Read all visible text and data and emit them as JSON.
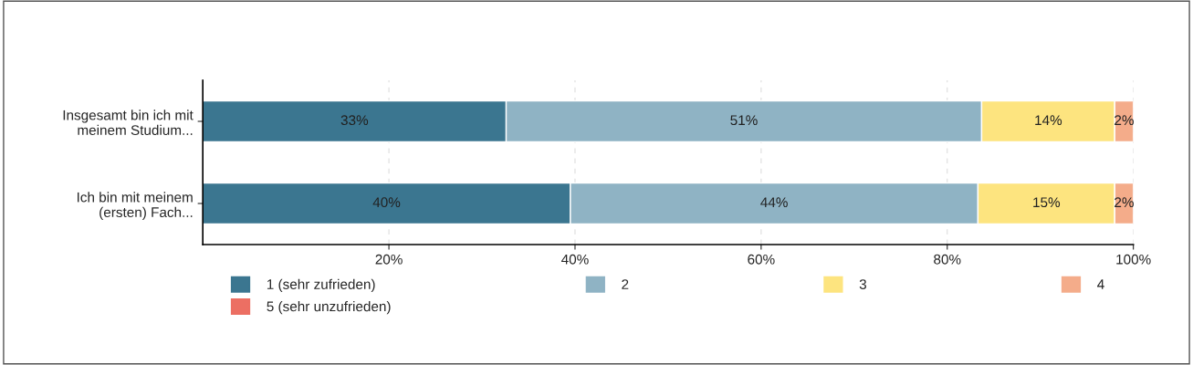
{
  "chart_data": {
    "type": "bar",
    "orientation": "horizontal",
    "stacked": true,
    "categories": [
      "Insgesamt bin ich mit\nmeinem Studium...",
      "Ich bin mit meinem\n(ersten) Fach..."
    ],
    "series": [
      {
        "name": "1 (sehr zufrieden)",
        "color": "#3b7690",
        "values": [
          32.6,
          39.5
        ],
        "value_labels": [
          "33%",
          "40%"
        ]
      },
      {
        "name": "2",
        "color": "#8fb3c4",
        "values": [
          51.1,
          43.8
        ],
        "value_labels": [
          "51%",
          "44%"
        ]
      },
      {
        "name": "3",
        "color": "#fde47f",
        "values": [
          14.3,
          14.7
        ],
        "value_labels": [
          "14%",
          "15%"
        ]
      },
      {
        "name": "4",
        "color": "#f4ac8a",
        "values": [
          2.0,
          2.0
        ],
        "value_labels": [
          "2%",
          "2%"
        ]
      },
      {
        "name": "5 (sehr unzufrieden)",
        "color": "#ec6f63",
        "values": [
          null,
          null
        ]
      }
    ],
    "xlim": [
      0,
      100
    ],
    "xticks": [
      {
        "value": 20,
        "label": "20%"
      },
      {
        "value": 40,
        "label": "40%"
      },
      {
        "value": 60,
        "label": "60%"
      },
      {
        "value": 80,
        "label": "80%"
      },
      {
        "value": 100,
        "label": "100%"
      }
    ],
    "grid": "x",
    "legend": "bottom"
  }
}
